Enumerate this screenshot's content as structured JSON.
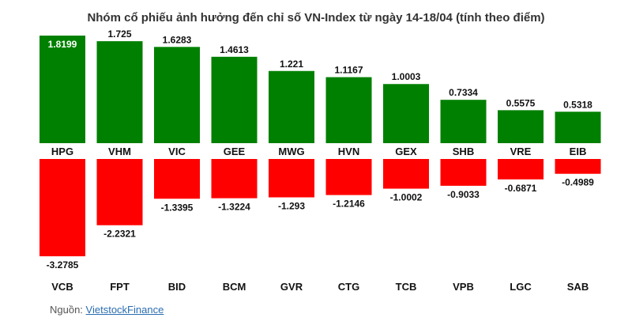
{
  "chart_data": {
    "type": "bar",
    "title": "Nhóm cổ phiếu ảnh hưởng đến chỉ số VN-Index từ ngày 14-18/04 (tính theo điểm)",
    "xlabel": "",
    "ylabel": "",
    "grid": false,
    "legend": "none",
    "colors": {
      "positive": "#008000",
      "negative": "#ff0000"
    },
    "series": [
      {
        "categories": [
          "HPG",
          "VHM",
          "VIC",
          "GEE",
          "MWG",
          "HVN",
          "GEX",
          "SHB",
          "VRE",
          "EIB"
        ],
        "values": [
          1.8199,
          1.725,
          1.6283,
          1.4613,
          1.221,
          1.1167,
          1.0003,
          0.7334,
          0.5575,
          0.5318
        ],
        "labels": [
          "1.8199",
          "1.725",
          "1.6283",
          "1.4613",
          "1.221",
          "1.1167",
          "1.0003",
          "0.7334",
          "0.5575",
          "0.5318"
        ]
      },
      {
        "categories": [
          "VCB",
          "FPT",
          "BID",
          "BCM",
          "GVR",
          "CTG",
          "TCB",
          "VPB",
          "LGC",
          "SAB"
        ],
        "values": [
          -3.2785,
          -2.2321,
          -1.3395,
          -1.3224,
          -1.293,
          -1.2146,
          -1.0002,
          -0.9033,
          -0.6871,
          -0.4989
        ],
        "labels": [
          "-3.2785",
          "-2.2321",
          "-1.3395",
          "-1.3224",
          "-1.293",
          "-1.2146",
          "-1.0002",
          "-0.9033",
          "-0.6871",
          "-0.4989"
        ]
      }
    ]
  },
  "source": {
    "prefix": "Nguồn: ",
    "link_text": "VietstockFinance"
  }
}
